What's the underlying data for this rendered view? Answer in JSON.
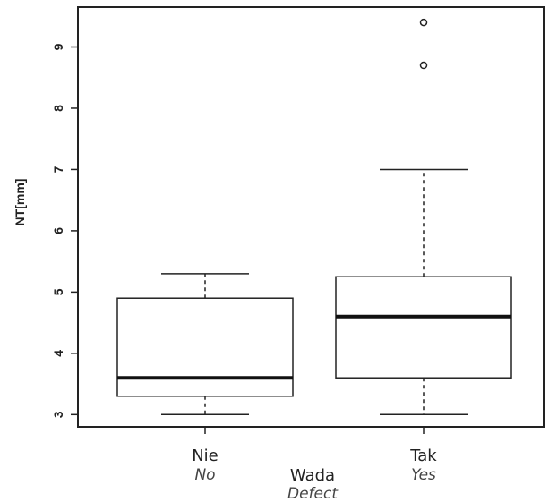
{
  "chart_data": {
    "type": "boxplot",
    "ylabel": "NT[mm]",
    "xlabel": "Wada",
    "xlabel_translation": "Defect",
    "ylim": [
      2.8,
      9.65
    ],
    "yticks": [
      "3",
      "4",
      "5",
      "6",
      "7",
      "8",
      "9"
    ],
    "grid": false,
    "boxes": [
      {
        "category": "Nie",
        "category_translation": "No",
        "whisker_low": 3.0,
        "q1": 3.3,
        "median": 3.6,
        "q3": 4.9,
        "whisker_high": 5.3,
        "outliers": []
      },
      {
        "category": "Tak",
        "category_translation": "Yes",
        "whisker_low": 3.0,
        "q1": 3.6,
        "median": 4.6,
        "q3": 5.25,
        "whisker_high": 7.0,
        "outliers": [
          8.7,
          9.4
        ]
      }
    ]
  }
}
